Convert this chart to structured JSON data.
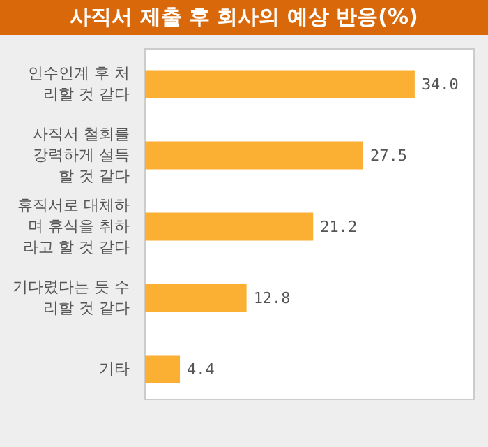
{
  "chart_data": {
    "type": "bar",
    "orientation": "horizontal",
    "title": "사직서 제출 후 회사의 예상 반응(%)",
    "categories": [
      "인수인계 후 처\n리할 것 같다",
      "사직서 철회를\n강력하게 설득\n할 것 같다",
      "휴직서로 대체하\n며 휴식을 취하\n라고 할 것 같다",
      "기다렸다는 듯 수\n리할 것 같다",
      "기타"
    ],
    "values": [
      34.0,
      27.5,
      21.2,
      12.8,
      4.4
    ],
    "value_labels": [
      "34.0",
      "27.5",
      "21.2",
      "12.8",
      "4.4"
    ],
    "color": "#fbb034",
    "grid": false,
    "legend": false
  }
}
